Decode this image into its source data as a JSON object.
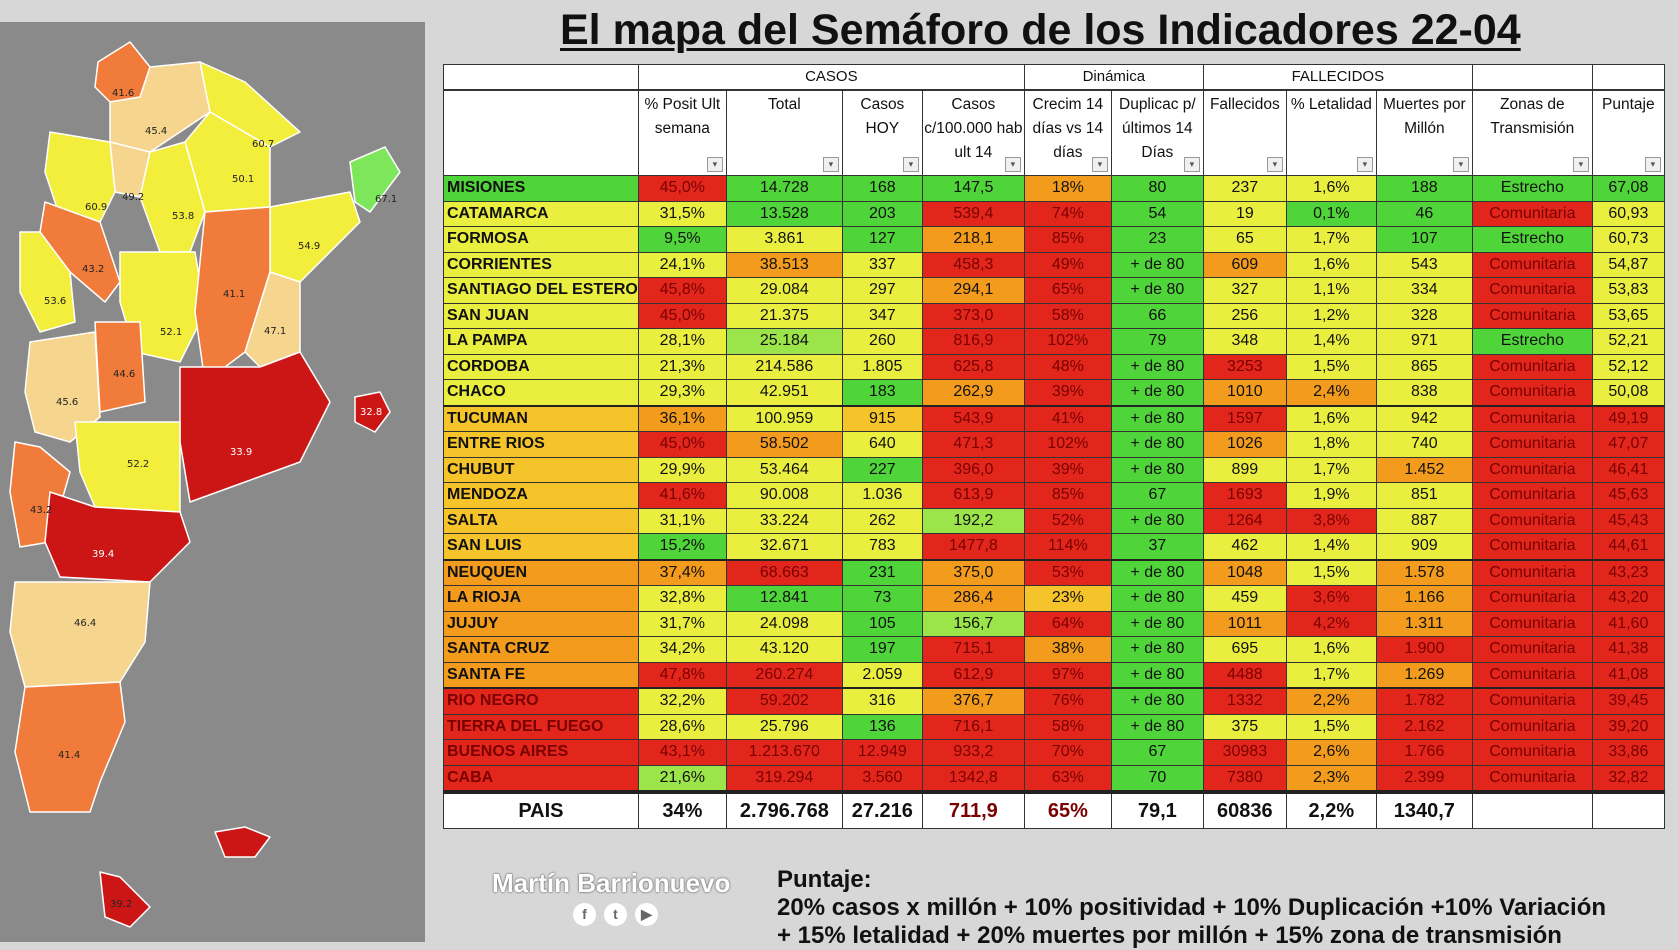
{
  "title": "El mapa del Semáforo de los Indicadores 22-04",
  "table": {
    "groups": {
      "casos": "CASOS",
      "dinamica": "Dinámica",
      "fallecidos": "FALLECIDOS"
    },
    "headers": [
      "",
      "% Posit Ult semana",
      "Total",
      "Casos HOY",
      "Casos c/100.000 hab ult 14",
      "Crecim 14 días vs 14 días",
      "Duplicac p/últimos 14 Días",
      "Fallecidos",
      "% Letalidad",
      "Muertes por Millón",
      "Zonas de Transmisión",
      "Puntaje"
    ],
    "rows": [
      {
        "c": [
          "MISIONES",
          "45,0%",
          "14.728",
          "168",
          "147,5",
          "18%",
          "80",
          "237",
          "1,6%",
          "188",
          "Estrecho",
          "67,08"
        ],
        "k": [
          "G",
          "R",
          "G",
          "G",
          "G",
          "O",
          "G",
          "Y",
          "Y",
          "G",
          "G",
          "G"
        ]
      },
      {
        "c": [
          "CATAMARCA",
          "31,5%",
          "13.528",
          "203",
          "539,4",
          "74%",
          "54",
          "19",
          "0,1%",
          "46",
          "Comunitaria",
          "60,93"
        ],
        "k": [
          "Y",
          "Y",
          "G",
          "G",
          "R",
          "R",
          "G",
          "Y",
          "G",
          "G",
          "R",
          "Y"
        ]
      },
      {
        "c": [
          "FORMOSA",
          "9,5%",
          "3.861",
          "127",
          "218,1",
          "85%",
          "23",
          "65",
          "1,7%",
          "107",
          "Estrecho",
          "60,73"
        ],
        "k": [
          "Y",
          "G",
          "Y",
          "G",
          "O",
          "R",
          "G",
          "Y",
          "Y",
          "G",
          "G",
          "Y"
        ]
      },
      {
        "c": [
          "CORRIENTES",
          "24,1%",
          "38.513",
          "337",
          "458,3",
          "49%",
          "+ de 80",
          "609",
          "1,6%",
          "543",
          "Comunitaria",
          "54,87"
        ],
        "k": [
          "Y",
          "Y",
          "O",
          "Y",
          "R",
          "R",
          "G",
          "O",
          "Y",
          "Y",
          "R",
          "Y"
        ]
      },
      {
        "c": [
          "SANTIAGO DEL ESTERO",
          "45,8%",
          "29.084",
          "297",
          "294,1",
          "65%",
          "+ de 80",
          "327",
          "1,1%",
          "334",
          "Comunitaria",
          "53,83"
        ],
        "k": [
          "Y",
          "R",
          "Y",
          "Y",
          "O",
          "R",
          "G",
          "Y",
          "Y",
          "Y",
          "R",
          "Y"
        ]
      },
      {
        "c": [
          "SAN JUAN",
          "45,0%",
          "21.375",
          "347",
          "373,0",
          "58%",
          "66",
          "256",
          "1,2%",
          "328",
          "Comunitaria",
          "53,65"
        ],
        "k": [
          "Y",
          "R",
          "Y",
          "Y",
          "R",
          "R",
          "G",
          "Y",
          "Y",
          "Y",
          "R",
          "Y"
        ]
      },
      {
        "c": [
          "LA PAMPA",
          "28,1%",
          "25.184",
          "260",
          "816,9",
          "102%",
          "79",
          "348",
          "1,4%",
          "971",
          "Estrecho",
          "52,21"
        ],
        "k": [
          "Y",
          "Y",
          "LG",
          "Y",
          "R",
          "R",
          "G",
          "Y",
          "Y",
          "Y",
          "G",
          "Y"
        ]
      },
      {
        "c": [
          "CORDOBA",
          "21,3%",
          "214.586",
          "1.805",
          "625,8",
          "48%",
          "+ de 80",
          "3253",
          "1,5%",
          "865",
          "Comunitaria",
          "52,12"
        ],
        "k": [
          "Y",
          "Y",
          "Y",
          "Y",
          "R",
          "R",
          "G",
          "R",
          "Y",
          "Y",
          "R",
          "Y"
        ]
      },
      {
        "c": [
          "CHACO",
          "29,3%",
          "42.951",
          "183",
          "262,9",
          "39%",
          "+ de 80",
          "1010",
          "2,4%",
          "838",
          "Comunitaria",
          "50,08"
        ],
        "k": [
          "Y",
          "Y",
          "Y",
          "G",
          "O",
          "R",
          "G",
          "O",
          "O",
          "Y",
          "R",
          "Y"
        ]
      },
      {
        "c": [
          "TUCUMAN",
          "36,1%",
          "100.959",
          "915",
          "543,9",
          "41%",
          "+ de 80",
          "1597",
          "1,6%",
          "942",
          "Comunitaria",
          "49,19"
        ],
        "k": [
          "LO",
          "O",
          "Y",
          "LO",
          "R",
          "R",
          "G",
          "R",
          "Y",
          "Y",
          "R",
          "R"
        ],
        "gap": true
      },
      {
        "c": [
          "ENTRE RIOS",
          "45,0%",
          "58.502",
          "640",
          "471,3",
          "102%",
          "+ de 80",
          "1026",
          "1,8%",
          "740",
          "Comunitaria",
          "47,07"
        ],
        "k": [
          "LO",
          "R",
          "O",
          "Y",
          "R",
          "R",
          "G",
          "O",
          "Y",
          "Y",
          "R",
          "R"
        ]
      },
      {
        "c": [
          "CHUBUT",
          "29,9%",
          "53.464",
          "227",
          "396,0",
          "39%",
          "+ de 80",
          "899",
          "1,7%",
          "1.452",
          "Comunitaria",
          "46,41"
        ],
        "k": [
          "LO",
          "Y",
          "Y",
          "G",
          "R",
          "R",
          "G",
          "Y",
          "Y",
          "O",
          "R",
          "R"
        ]
      },
      {
        "c": [
          "MENDOZA",
          "41,6%",
          "90.008",
          "1.036",
          "613,9",
          "85%",
          "67",
          "1693",
          "1,9%",
          "851",
          "Comunitaria",
          "45,63"
        ],
        "k": [
          "LO",
          "R",
          "Y",
          "Y",
          "R",
          "R",
          "G",
          "R",
          "Y",
          "Y",
          "R",
          "R"
        ]
      },
      {
        "c": [
          "SALTA",
          "31,1%",
          "33.224",
          "262",
          "192,2",
          "52%",
          "+ de 80",
          "1264",
          "3,8%",
          "887",
          "Comunitaria",
          "45,43"
        ],
        "k": [
          "LO",
          "Y",
          "Y",
          "Y",
          "LG",
          "R",
          "G",
          "R",
          "R",
          "Y",
          "R",
          "R"
        ]
      },
      {
        "c": [
          "SAN LUIS",
          "15,2%",
          "32.671",
          "783",
          "1477,8",
          "114%",
          "37",
          "462",
          "1,4%",
          "909",
          "Comunitaria",
          "44,61"
        ],
        "k": [
          "LO",
          "G",
          "Y",
          "Y",
          "R",
          "R",
          "G",
          "Y",
          "Y",
          "Y",
          "R",
          "R"
        ]
      },
      {
        "c": [
          "NEUQUEN",
          "37,4%",
          "68.663",
          "231",
          "375,0",
          "53%",
          "+ de 80",
          "1048",
          "1,5%",
          "1.578",
          "Comunitaria",
          "43,23"
        ],
        "k": [
          "O",
          "O",
          "R",
          "G",
          "O",
          "R",
          "G",
          "O",
          "Y",
          "O",
          "R",
          "R"
        ],
        "gap": true
      },
      {
        "c": [
          "LA RIOJA",
          "32,8%",
          "12.841",
          "73",
          "286,4",
          "23%",
          "+ de 80",
          "459",
          "3,6%",
          "1.166",
          "Comunitaria",
          "43,20"
        ],
        "k": [
          "O",
          "Y",
          "G",
          "G",
          "O",
          "LO",
          "G",
          "Y",
          "R",
          "O",
          "R",
          "R"
        ]
      },
      {
        "c": [
          "JUJUY",
          "31,7%",
          "24.098",
          "105",
          "156,7",
          "64%",
          "+ de 80",
          "1011",
          "4,2%",
          "1.311",
          "Comunitaria",
          "41,60"
        ],
        "k": [
          "O",
          "Y",
          "Y",
          "G",
          "LG",
          "R",
          "G",
          "O",
          "R",
          "O",
          "R",
          "R"
        ]
      },
      {
        "c": [
          "SANTA CRUZ",
          "34,2%",
          "43.120",
          "197",
          "715,1",
          "38%",
          "+ de 80",
          "695",
          "1,6%",
          "1.900",
          "Comunitaria",
          "41,38"
        ],
        "k": [
          "O",
          "Y",
          "Y",
          "G",
          "R",
          "O",
          "G",
          "Y",
          "Y",
          "R",
          "R",
          "R"
        ]
      },
      {
        "c": [
          "SANTA FE",
          "47,8%",
          "260.274",
          "2.059",
          "612,9",
          "97%",
          "+ de 80",
          "4488",
          "1,7%",
          "1.269",
          "Comunitaria",
          "41,08"
        ],
        "k": [
          "O",
          "R",
          "R",
          "Y",
          "R",
          "R",
          "G",
          "R",
          "Y",
          "O",
          "R",
          "R"
        ]
      },
      {
        "c": [
          "RIO NEGRO",
          "32,2%",
          "59.202",
          "316",
          "376,7",
          "76%",
          "+ de 80",
          "1332",
          "2,2%",
          "1.782",
          "Comunitaria",
          "39,45"
        ],
        "k": [
          "R",
          "Y",
          "R",
          "Y",
          "O",
          "R",
          "G",
          "R",
          "O",
          "R",
          "R",
          "R"
        ],
        "gap": true
      },
      {
        "c": [
          "TIERRA DEL FUEGO",
          "28,6%",
          "25.796",
          "136",
          "716,1",
          "58%",
          "+ de 80",
          "375",
          "1,5%",
          "2.162",
          "Comunitaria",
          "39,20"
        ],
        "k": [
          "R",
          "Y",
          "Y",
          "G",
          "R",
          "R",
          "G",
          "Y",
          "Y",
          "R",
          "R",
          "R"
        ]
      },
      {
        "c": [
          "BUENOS AIRES",
          "43,1%",
          "1.213.670",
          "12.949",
          "933,2",
          "70%",
          "67",
          "30983",
          "2,6%",
          "1.766",
          "Comunitaria",
          "33,86"
        ],
        "k": [
          "R",
          "R",
          "R",
          "R",
          "R",
          "R",
          "G",
          "R",
          "O",
          "R",
          "R",
          "R"
        ]
      },
      {
        "c": [
          "CABA",
          "21,6%",
          "319.294",
          "3.560",
          "1342,8",
          "63%",
          "70",
          "7380",
          "2,3%",
          "2.399",
          "Comunitaria",
          "32,82"
        ],
        "k": [
          "R",
          "LG",
          "R",
          "R",
          "R",
          "R",
          "G",
          "R",
          "O",
          "R",
          "R",
          "R"
        ]
      }
    ],
    "pais": {
      "c": [
        "PAIS",
        "34%",
        "2.796.768",
        "27.216",
        "711,9",
        "65%",
        "79,1",
        "60836",
        "2,2%",
        "1340,7",
        "",
        ""
      ],
      "k": [
        "W",
        "LO",
        "W",
        "W",
        "R",
        "R",
        "W",
        "W",
        "LO",
        "LO",
        "W",
        "W"
      ]
    }
  },
  "map_labels": [
    "41.6",
    "45.4",
    "60.7",
    "50.1",
    "60.9",
    "49.2",
    "53.8",
    "67.1",
    "54.9",
    "43.2",
    "53.6",
    "41.1",
    "52.1",
    "47.1",
    "44.6",
    "45.6",
    "33.9",
    "32.8",
    "52.2",
    "43.2",
    "39.4",
    "46.4",
    "41.4",
    "39.2"
  ],
  "brand": "Martín Barrionuevo",
  "socials": [
    "f",
    "t",
    "▶"
  ],
  "formula": {
    "label": "Puntaje:",
    "line1": "20% casos x millón + 10% positividad + 10% Duplicación +10% Variación",
    "line2": "+ 15% letalidad + 20% muertes por millón + 15% zona de transmisión"
  },
  "colors": {
    "R": "#e2261c",
    "G": "#4fd43a",
    "LG": "#9be44a",
    "Y": "#e9ee3f",
    "O": "#f39b1c",
    "LO": "#f5c42a"
  }
}
